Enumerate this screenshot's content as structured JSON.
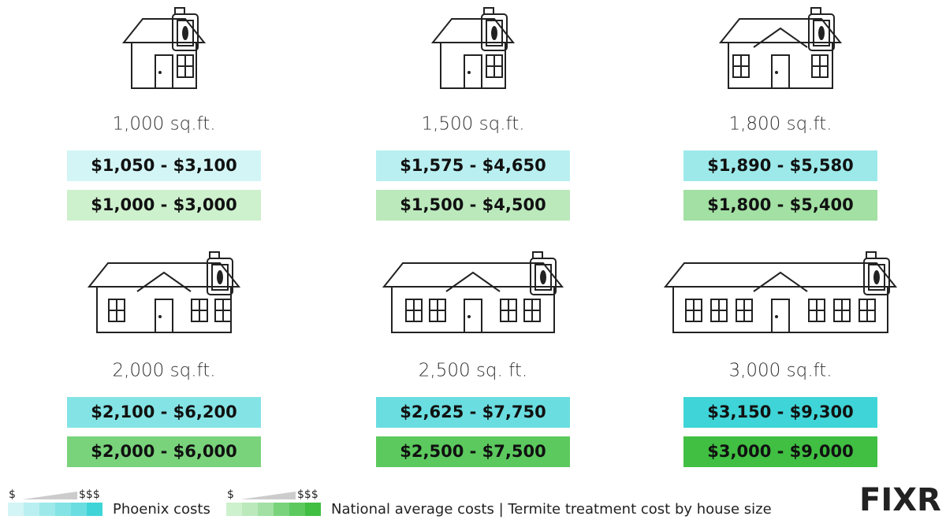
{
  "items": [
    {
      "size": "1,000 sq.ft.",
      "phoenix": "$1,050 - $3,100",
      "national": "$1,000 - $3,000",
      "phoenix_color": "#d3f5f5",
      "national_color": "#cdf0cd"
    },
    {
      "size": "1,500 sq.ft.",
      "phoenix": "$1,575 - $4,650",
      "national": "$1,500 - $4,500",
      "phoenix_color": "#b9eff0",
      "national_color": "#bbe9bc"
    },
    {
      "size": "1,800 sq.ft.",
      "phoenix": "$1,890 - $5,580",
      "national": "$1,800 - $5,400",
      "phoenix_color": "#9de9ea",
      "national_color": "#a2e0a3"
    },
    {
      "size": "2,000 sq.ft.",
      "phoenix": "$2,100 - $6,200",
      "national": "$2,000 - $6,000",
      "phoenix_color": "#84e3e5",
      "national_color": "#79d37b"
    },
    {
      "size": "2,500 sq. ft.",
      "phoenix": "$2,625 - $7,750",
      "national": "$2,500 - $7,500",
      "phoenix_color": "#6adde0",
      "national_color": "#5cc95e"
    },
    {
      "size": "3,000 sq.ft.",
      "phoenix": "$3,150 - $9,300",
      "national": "$3,000 - $9,000",
      "phoenix_color": "#3fd4d7",
      "national_color": "#40bf42"
    }
  ],
  "legend": {
    "phoenix": {
      "low": "$",
      "high": "$$$",
      "label": "Phoenix costs",
      "colors": [
        "#d3f5f5",
        "#b9eff0",
        "#9de9ea",
        "#84e3e5",
        "#6adde0",
        "#3fd4d7"
      ]
    },
    "national": {
      "low": "$",
      "high": "$$$",
      "label": "National average costs | Termite treatment cost by house size",
      "colors": [
        "#cdf0cd",
        "#bbe9bc",
        "#a2e0a3",
        "#79d37b",
        "#5cc95e",
        "#40bf42"
      ]
    }
  },
  "logo": "FIXR"
}
